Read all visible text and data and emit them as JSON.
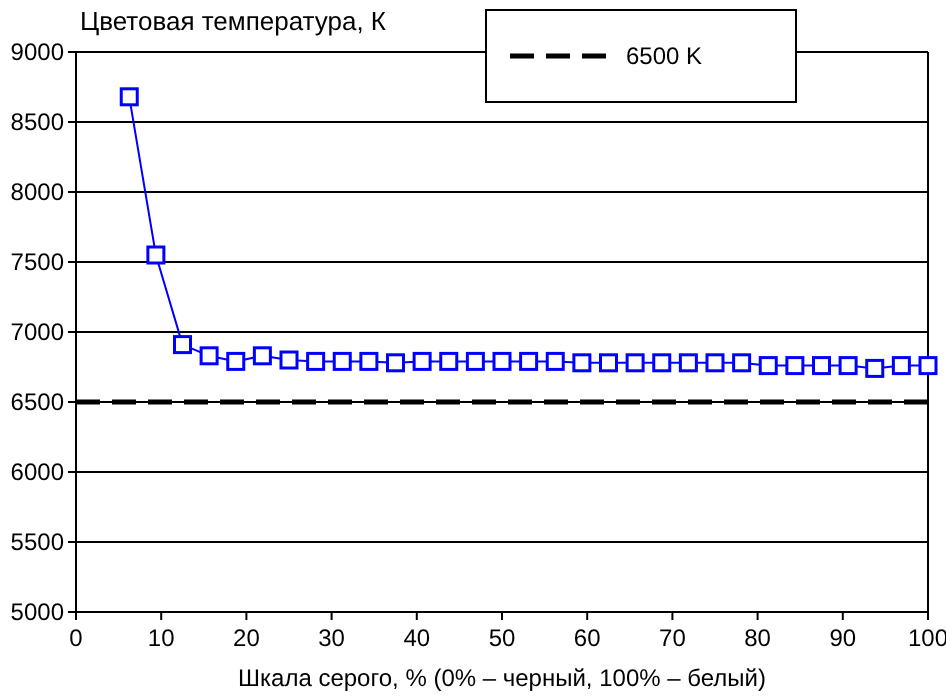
{
  "chart_data": {
    "type": "line",
    "ylabel": "Цветовая температура, К",
    "xlabel": "Шкала серого, % (0% – черный, 100% – белый)",
    "xlim": [
      0,
      100
    ],
    "xticks": [
      0,
      10,
      20,
      30,
      40,
      50,
      60,
      70,
      80,
      90,
      100
    ],
    "ylim": [
      5000,
      9000
    ],
    "yticks": [
      5000,
      5500,
      6000,
      6500,
      7000,
      7500,
      8000,
      8500,
      9000
    ],
    "grid": "y",
    "legend": "top right",
    "marker": "square",
    "series": [
      {
        "color": "#0000ff",
        "x": [
          6.25,
          9.375,
          12.5,
          15.625,
          18.75,
          21.875,
          25,
          28.125,
          31.25,
          34.375,
          37.5,
          40.625,
          43.75,
          46.875,
          50,
          53.125,
          56.25,
          59.375,
          62.5,
          65.625,
          68.75,
          71.875,
          75,
          78.125,
          81.25,
          84.375,
          87.5,
          90.625,
          93.75,
          96.875,
          100
        ],
        "values": [
          8680,
          7550,
          6910,
          6830,
          6790,
          6830,
          6800,
          6790,
          6790,
          6790,
          6780,
          6790,
          6790,
          6790,
          6790,
          6790,
          6790,
          6780,
          6780,
          6780,
          6780,
          6780,
          6780,
          6780,
          6760,
          6760,
          6760,
          6760,
          6740,
          6760,
          6760
        ]
      }
    ],
    "ref_lines": [
      {
        "axis": "y",
        "value": 6500,
        "label": "6500 K",
        "color": "#000000",
        "line_style": "dashed"
      }
    ]
  }
}
